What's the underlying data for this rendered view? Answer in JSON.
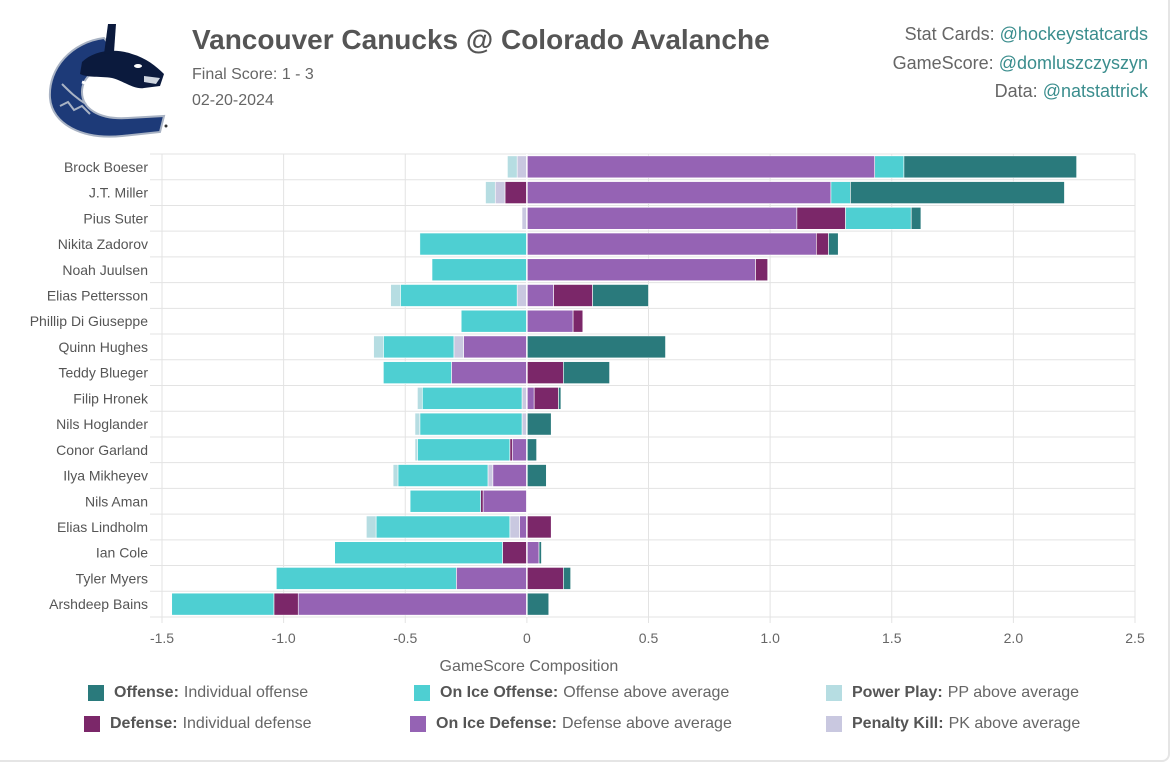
{
  "header": {
    "title": "Vancouver Canucks @ Colorado Avalanche",
    "final_score": "Final Score: 1 - 3",
    "date": "02-20-2024",
    "logo_icon": "vancouver-canucks-orca-logo"
  },
  "credits": [
    {
      "label": "Stat Cards:",
      "handle": "@hockeystatcards"
    },
    {
      "label": "GameScore:",
      "handle": "@domluszczyszyn"
    },
    {
      "label": "Data:",
      "handle": "@natstattrick"
    }
  ],
  "colors": {
    "offense": "#2a7a7c",
    "defense": "#7b2769",
    "on_ice_offense": "#4ecfd2",
    "on_ice_defense": "#9563b4",
    "power_play": "#b6dde2",
    "penalty_kill": "#c9c8e0",
    "title": "#555555",
    "handle": "#3a8d8d",
    "grid": "#e3e3e3"
  },
  "legend": [
    {
      "key": "offense",
      "bold": "Offense:",
      "text": "Individual offense"
    },
    {
      "key": "on_ice_offense",
      "bold": "On Ice Offense:",
      "text": "Offense above average"
    },
    {
      "key": "power_play",
      "bold": "Power Play:",
      "text": "PP above average"
    },
    {
      "key": "defense",
      "bold": "Defense:",
      "text": "Individual defense"
    },
    {
      "key": "on_ice_defense",
      "bold": "On Ice Defense:",
      "text": "Defense above average"
    },
    {
      "key": "penalty_kill",
      "bold": "Penalty Kill:",
      "text": "PK above average"
    }
  ],
  "chart_data": {
    "type": "bar",
    "orientation": "horizontal-stacked-diverging",
    "xlabel": "GameScore Composition",
    "xlim": [
      -1.5,
      2.5
    ],
    "xticks": [
      -1.5,
      -1.0,
      -0.5,
      0,
      0.5,
      1.0,
      1.5,
      2.0,
      2.5
    ],
    "xtick_labels": [
      "-1.5",
      "-1.0",
      "-0.5",
      "0",
      "0.5",
      "1.0",
      "1.5",
      "2.0",
      "2.5"
    ],
    "grid": true,
    "legend_position": "bottom",
    "series_keys": [
      "offense",
      "defense",
      "on_ice_offense",
      "on_ice_defense",
      "power_play",
      "penalty_kill"
    ],
    "players": [
      {
        "name": "Brock Boeser",
        "segments": [
          [
            "on_ice_defense",
            1.43
          ],
          [
            "on_ice_offense",
            0.12
          ],
          [
            "offense",
            0.71
          ],
          [
            "penalty_kill",
            -0.04
          ],
          [
            "power_play",
            -0.04
          ]
        ]
      },
      {
        "name": "J.T. Miller",
        "segments": [
          [
            "on_ice_defense",
            1.25
          ],
          [
            "on_ice_offense",
            0.08
          ],
          [
            "offense",
            0.88
          ],
          [
            "defense",
            -0.09
          ],
          [
            "penalty_kill",
            -0.04
          ],
          [
            "power_play",
            -0.04
          ]
        ]
      },
      {
        "name": "Pius Suter",
        "segments": [
          [
            "on_ice_defense",
            1.11
          ],
          [
            "defense",
            0.2
          ],
          [
            "on_ice_offense",
            0.27
          ],
          [
            "offense",
            0.04
          ],
          [
            "penalty_kill",
            -0.02
          ]
        ]
      },
      {
        "name": "Nikita Zadorov",
        "segments": [
          [
            "on_ice_defense",
            1.19
          ],
          [
            "defense",
            0.05
          ],
          [
            "offense",
            0.04
          ],
          [
            "on_ice_offense",
            -0.44
          ]
        ]
      },
      {
        "name": "Noah Juulsen",
        "segments": [
          [
            "on_ice_defense",
            0.94
          ],
          [
            "defense",
            0.05
          ],
          [
            "on_ice_offense",
            -0.39
          ]
        ]
      },
      {
        "name": "Elias Pettersson",
        "segments": [
          [
            "on_ice_defense",
            0.11
          ],
          [
            "defense",
            0.16
          ],
          [
            "offense",
            0.23
          ],
          [
            "penalty_kill",
            -0.04
          ],
          [
            "on_ice_offense",
            -0.48
          ],
          [
            "power_play",
            -0.04
          ]
        ]
      },
      {
        "name": "Phillip Di Giuseppe",
        "segments": [
          [
            "on_ice_defense",
            0.19
          ],
          [
            "defense",
            0.04
          ],
          [
            "on_ice_offense",
            -0.27
          ]
        ]
      },
      {
        "name": "Quinn Hughes",
        "segments": [
          [
            "offense",
            0.57
          ],
          [
            "on_ice_defense",
            -0.26
          ],
          [
            "penalty_kill",
            -0.04
          ],
          [
            "on_ice_offense",
            -0.29
          ],
          [
            "power_play",
            -0.04
          ]
        ]
      },
      {
        "name": "Teddy Blueger",
        "segments": [
          [
            "defense",
            0.15
          ],
          [
            "offense",
            0.19
          ],
          [
            "on_ice_defense",
            -0.31
          ],
          [
            "on_ice_offense",
            -0.28
          ]
        ]
      },
      {
        "name": "Filip Hronek",
        "segments": [
          [
            "on_ice_defense",
            0.03
          ],
          [
            "defense",
            0.1
          ],
          [
            "offense",
            0.01
          ],
          [
            "penalty_kill",
            -0.02
          ],
          [
            "on_ice_offense",
            -0.41
          ],
          [
            "power_play",
            -0.02
          ]
        ]
      },
      {
        "name": "Nils Hoglander",
        "segments": [
          [
            "offense",
            0.1
          ],
          [
            "penalty_kill",
            -0.02
          ],
          [
            "on_ice_offense",
            -0.42
          ],
          [
            "power_play",
            -0.02
          ]
        ]
      },
      {
        "name": "Conor Garland",
        "segments": [
          [
            "offense",
            0.04
          ],
          [
            "on_ice_defense",
            -0.06
          ],
          [
            "defense",
            -0.01
          ],
          [
            "on_ice_offense",
            -0.38
          ],
          [
            "power_play",
            -0.01
          ]
        ]
      },
      {
        "name": "Ilya Mikheyev",
        "segments": [
          [
            "offense",
            0.08
          ],
          [
            "on_ice_defense",
            -0.14
          ],
          [
            "penalty_kill",
            -0.02
          ],
          [
            "on_ice_offense",
            -0.37
          ],
          [
            "power_play",
            -0.02
          ]
        ]
      },
      {
        "name": "Nils Aman",
        "segments": [
          [
            "on_ice_defense",
            -0.18
          ],
          [
            "defense",
            -0.01
          ],
          [
            "on_ice_offense",
            -0.29
          ]
        ]
      },
      {
        "name": "Elias Lindholm",
        "segments": [
          [
            "defense",
            0.1
          ],
          [
            "on_ice_defense",
            -0.03
          ],
          [
            "penalty_kill",
            -0.04
          ],
          [
            "on_ice_offense",
            -0.55
          ],
          [
            "power_play",
            -0.04
          ]
        ]
      },
      {
        "name": "Ian Cole",
        "segments": [
          [
            "on_ice_defense",
            0.05
          ],
          [
            "offense",
            0.01
          ],
          [
            "defense",
            -0.1
          ],
          [
            "on_ice_offense",
            -0.69
          ]
        ]
      },
      {
        "name": "Tyler Myers",
        "segments": [
          [
            "defense",
            0.15
          ],
          [
            "offense",
            0.03
          ],
          [
            "on_ice_defense",
            -0.29
          ],
          [
            "on_ice_offense",
            -0.74
          ]
        ]
      },
      {
        "name": "Arshdeep Bains",
        "segments": [
          [
            "offense",
            0.09
          ],
          [
            "on_ice_defense",
            -0.94
          ],
          [
            "defense",
            -0.1
          ],
          [
            "on_ice_offense",
            -0.42
          ]
        ]
      }
    ]
  }
}
